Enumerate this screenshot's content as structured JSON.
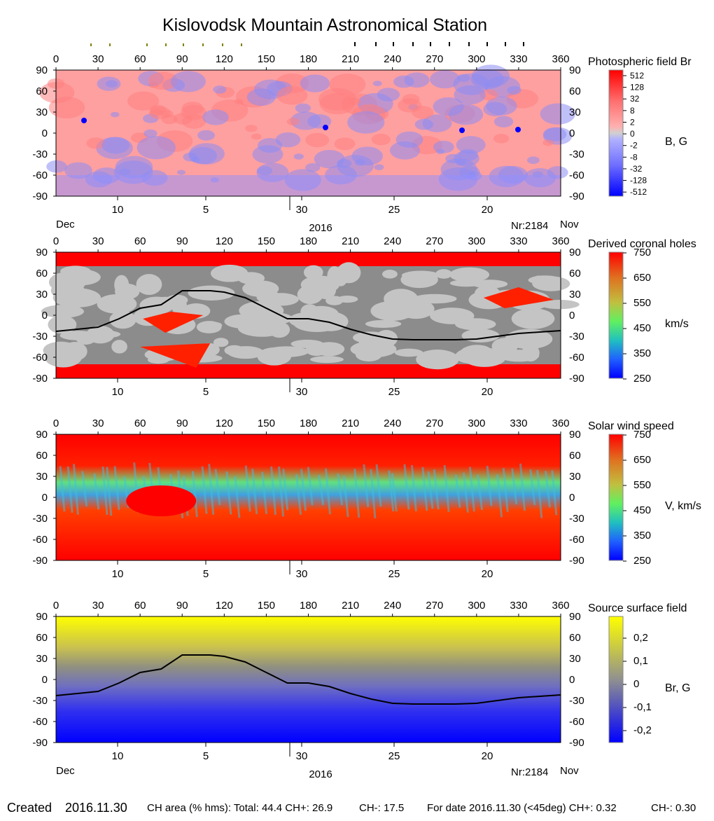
{
  "title": "Kislovodsk Mountain Astronomical Station",
  "lon_ticks": [
    "0",
    "30",
    "60",
    "90",
    "120",
    "150",
    "180",
    "210",
    "240",
    "270",
    "300",
    "330",
    "360"
  ],
  "lat_ticks": [
    "90",
    "60",
    "30",
    "0",
    "-30",
    "-60",
    "-90"
  ],
  "date_axis": {
    "ticks": [
      "10",
      "5",
      "30",
      "25",
      "20"
    ],
    "left_label": "Dec",
    "right_label": "Nov",
    "year": "2016",
    "rotation": "Nr:2184"
  },
  "panels": [
    {
      "key": "photospheric",
      "title": "Photospheric field Br",
      "unit": "B, G",
      "colorbar_labels": [
        "512",
        "128",
        "32",
        "8",
        "2",
        "0",
        "-2",
        "-8",
        "-32",
        "-128",
        "-512"
      ]
    },
    {
      "key": "coronal_holes",
      "title": "Derived coronal holes",
      "unit": "km/s",
      "colorbar_labels": [
        "750",
        "650",
        "550",
        "450",
        "350",
        "250"
      ]
    },
    {
      "key": "solar_wind",
      "title": "Solar wind speed",
      "unit": "V, km/s",
      "colorbar_labels": [
        "750",
        "650",
        "550",
        "450",
        "350",
        "250"
      ]
    },
    {
      "key": "source_surface",
      "title": "Source surface field",
      "unit": "Br, G",
      "colorbar_labels": [
        "0,2",
        "0,1",
        "0",
        "-0,1",
        "-0,2"
      ]
    }
  ],
  "chart_data": {
    "type": "heatmap",
    "title": "Kislovodsk Mountain Astronomical Station",
    "x_range": [
      0,
      360
    ],
    "y_range": [
      -90,
      90
    ],
    "neutral_line": {
      "x": [
        0,
        30,
        45,
        60,
        75,
        90,
        110,
        120,
        135,
        150,
        165,
        180,
        195,
        210,
        225,
        240,
        255,
        270,
        285,
        300,
        315,
        330,
        345,
        360
      ],
      "y": [
        -23,
        -17,
        -5,
        10,
        15,
        35,
        35,
        33,
        25,
        10,
        -5,
        -5,
        -10,
        -20,
        -28,
        -34,
        -35,
        -35,
        -35,
        -34,
        -30,
        -26,
        -24,
        -22
      ]
    },
    "colors": {
      "positive": "#ff0000",
      "negative": "#0000ff",
      "neutral": "#c8c8c8",
      "field_yellow": "#ffff00",
      "hole_low": "#a0a0a0"
    }
  },
  "footer": {
    "created_label": "Created",
    "created_date": "2016.11.30",
    "ch_area": "CH area (% hms): Total: 44.4 CH+: 26.9",
    "ch_minus": "CH-: 17.5",
    "for_date": "For date 2016.11.30 (<45deg) CH+: 0.32",
    "ch_minus_date": "CH-: 0.30"
  }
}
